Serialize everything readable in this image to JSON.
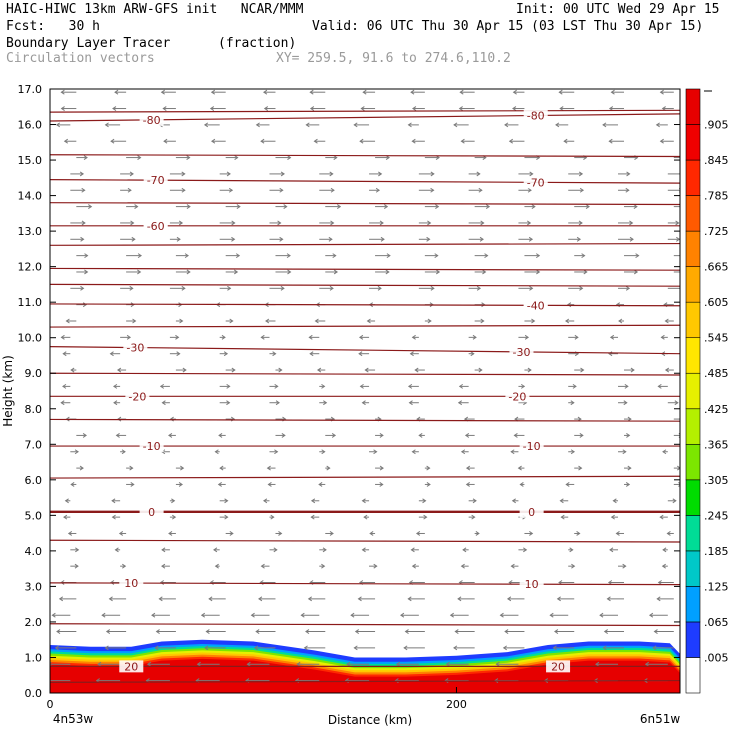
{
  "header": {
    "model": "HAIC-HIWC 13km ARW-GFS init   NCAR/MMM",
    "init": "Init: 00 UTC Wed 29 Apr 15",
    "fcst": "Fcst:   30 h",
    "valid": "Valid: 06 UTC Thu 30 Apr 15 (03 LST Thu 30 Apr 15)",
    "field": "Boundary Layer Tracer",
    "field_units": "(fraction)",
    "overlay": "Circulation vectors",
    "xy": "XY= 259.5, 91.6 to 274.6,110.2"
  },
  "chart_data": {
    "type": "heatmap",
    "xlabel": "Distance (km)",
    "ylabel": "Height (km)",
    "xlim": [
      0,
      310
    ],
    "ylim": [
      0,
      17
    ],
    "x_ticks": [
      0,
      200
    ],
    "x_tick_labels": [
      "0",
      "200"
    ],
    "x_end_labels": [
      "4n53w",
      "6n51w"
    ],
    "y_ticks": [
      0,
      1,
      2,
      3,
      4,
      5,
      6,
      7,
      8,
      9,
      10,
      11,
      12,
      13,
      14,
      15,
      16,
      17
    ],
    "y_tick_labels": [
      "0.0",
      "1.0",
      "2.0",
      "3.0",
      "4.0",
      "5.0",
      "6.0",
      "7.0",
      "8.0",
      "9.0",
      "10.0",
      "11.0",
      "12.0",
      "13.0",
      "14.0",
      "15.0",
      "16.0",
      "17.0"
    ],
    "colorbar": {
      "labels": [
        ".005",
        ".065",
        ".125",
        ".185",
        ".245",
        ".305",
        ".365",
        ".425",
        ".485",
        ".545",
        ".605",
        ".665",
        ".725",
        ".785",
        ".845",
        ".905"
      ],
      "colors": [
        "#ffffff",
        "#1e3cff",
        "#00a0ff",
        "#00c8c8",
        "#00dc96",
        "#00dc00",
        "#7ce600",
        "#b4f000",
        "#e6f000",
        "#ffe600",
        "#ffc800",
        "#ffaa00",
        "#ff8200",
        "#ff5a00",
        "#ff2800",
        "#f00000",
        "#e60000"
      ]
    },
    "bl_tracer_top": {
      "x": [
        0,
        20,
        40,
        55,
        75,
        100,
        130,
        150,
        175,
        200,
        225,
        245,
        265,
        290,
        305,
        310
      ],
      "height_km": [
        1.35,
        1.3,
        1.3,
        1.45,
        1.5,
        1.45,
        1.2,
        1.0,
        1.0,
        1.05,
        1.15,
        1.35,
        1.45,
        1.45,
        1.4,
        1.1
      ]
    },
    "temperature_contours": [
      {
        "label": "20",
        "label_x": [
          40,
          250
        ],
        "y": [
          0.75,
          0.75
        ]
      },
      {
        "label": "10",
        "label_x": [
          40,
          237
        ],
        "y": [
          3.1,
          3.05
        ]
      },
      {
        "label": "0",
        "label_x": [
          50,
          237
        ],
        "y": [
          5.1,
          5.1
        ]
      },
      {
        "label": "-10",
        "label_x": [
          50,
          237
        ],
        "y": [
          6.95,
          6.95
        ]
      },
      {
        "label": "-20",
        "label_x": [
          43,
          230
        ],
        "y": [
          8.35,
          8.35
        ]
      },
      {
        "label": "-30",
        "label_x": [
          42,
          232
        ],
        "y": [
          9.75,
          9.55
        ]
      },
      {
        "label": "-40",
        "label_x": [
          239,
          239
        ],
        "y": [
          10.95,
          10.9
        ]
      },
      {
        "label": "-60",
        "label_x": [
          52,
          52
        ],
        "y": [
          13.15,
          13.15
        ]
      },
      {
        "label": "-70",
        "label_x": [
          52,
          239
        ],
        "y": [
          14.45,
          14.35
        ]
      },
      {
        "label": "-80",
        "label_x": [
          50,
          239
        ],
        "y": [
          16.1,
          16.3
        ]
      }
    ],
    "unlabeled_contour_heights_km": [
      0.3,
      1.95,
      4.3,
      6.05,
      7.7,
      9.0,
      10.3,
      11.5,
      11.95,
      12.6,
      13.8,
      15.15,
      16.35
    ]
  },
  "colors": {
    "contour": "#8b1a1a",
    "vector": "#7a7a7a"
  }
}
